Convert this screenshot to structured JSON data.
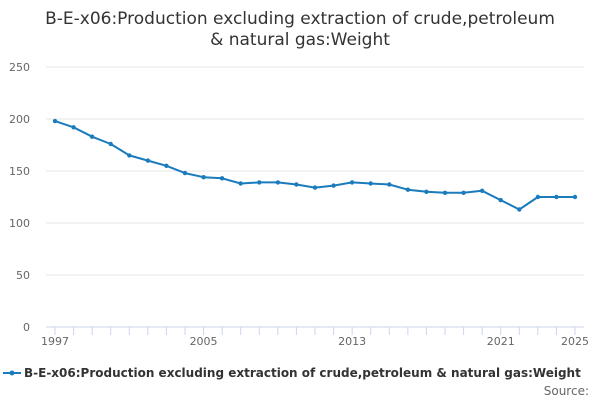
{
  "chart_data": {
    "type": "line",
    "title_lines": [
      "B-E-x06:Production excluding extraction of crude,petroleum",
      "& natural gas:Weight"
    ],
    "xlabel": "",
    "ylabel": "",
    "ylim": [
      0,
      250
    ],
    "yticks": [
      0,
      50,
      100,
      150,
      200,
      250
    ],
    "xlim": [
      1997,
      2025
    ],
    "xticks": [
      1997,
      2005,
      2013,
      2021,
      2025
    ],
    "grid": true,
    "legend_position": "bottom",
    "series": [
      {
        "name": "B-E-x06:Production excluding extraction of crude,petroleum & natural gas:Weight",
        "color": "#1a7bbd",
        "x": [
          1997,
          1998,
          1999,
          2000,
          2001,
          2002,
          2003,
          2004,
          2005,
          2006,
          2007,
          2008,
          2009,
          2010,
          2011,
          2012,
          2013,
          2014,
          2015,
          2016,
          2017,
          2018,
          2019,
          2020,
          2021,
          2022,
          2023,
          2024,
          2025
        ],
        "values": [
          198,
          192,
          183,
          176,
          165,
          160,
          155,
          148,
          144,
          143,
          138,
          139,
          139,
          137,
          134,
          136,
          139,
          138,
          137,
          132,
          130,
          129,
          129,
          131,
          122,
          113,
          125,
          125,
          125
        ]
      }
    ]
  },
  "footer": {
    "source_label": "Source:"
  }
}
